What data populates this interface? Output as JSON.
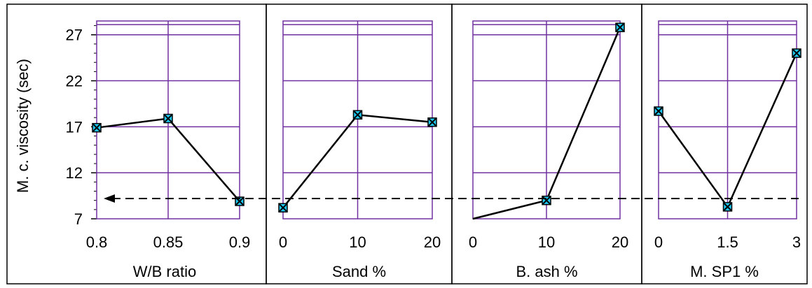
{
  "chart_data": {
    "type": "line",
    "ylabel": "M. c. viscosity (sec)",
    "ylim": [
      7,
      28.5
    ],
    "yticks": [
      "7",
      "12",
      "17",
      "22",
      "27"
    ],
    "reference_line": {
      "y": 9.2,
      "style": "dashed",
      "arrow": "left"
    },
    "panels": [
      {
        "xlabel": "W/B ratio",
        "x": [
          0.8,
          0.85,
          0.9
        ],
        "xticks": [
          "0.8",
          "0.85",
          "0.9"
        ],
        "values": [
          16.9,
          17.9,
          8.9
        ]
      },
      {
        "xlabel": "Sand %",
        "x": [
          0,
          10,
          20
        ],
        "xticks": [
          "0",
          "10",
          "20"
        ],
        "values": [
          8.2,
          18.3,
          17.5
        ]
      },
      {
        "xlabel": "B. ash %",
        "x": [
          0,
          10,
          20
        ],
        "xticks": [
          "0",
          "10",
          "20"
        ],
        "values": [
          7.0,
          9.0,
          27.8
        ]
      },
      {
        "xlabel": "M. SP1 %",
        "x": [
          0,
          1.5,
          3
        ],
        "xticks": [
          "0",
          "1.5",
          "3"
        ],
        "values": [
          18.7,
          8.3,
          25.0
        ]
      }
    ],
    "marker_color": "#1ec8f0",
    "grid_color": "#7030a0"
  }
}
